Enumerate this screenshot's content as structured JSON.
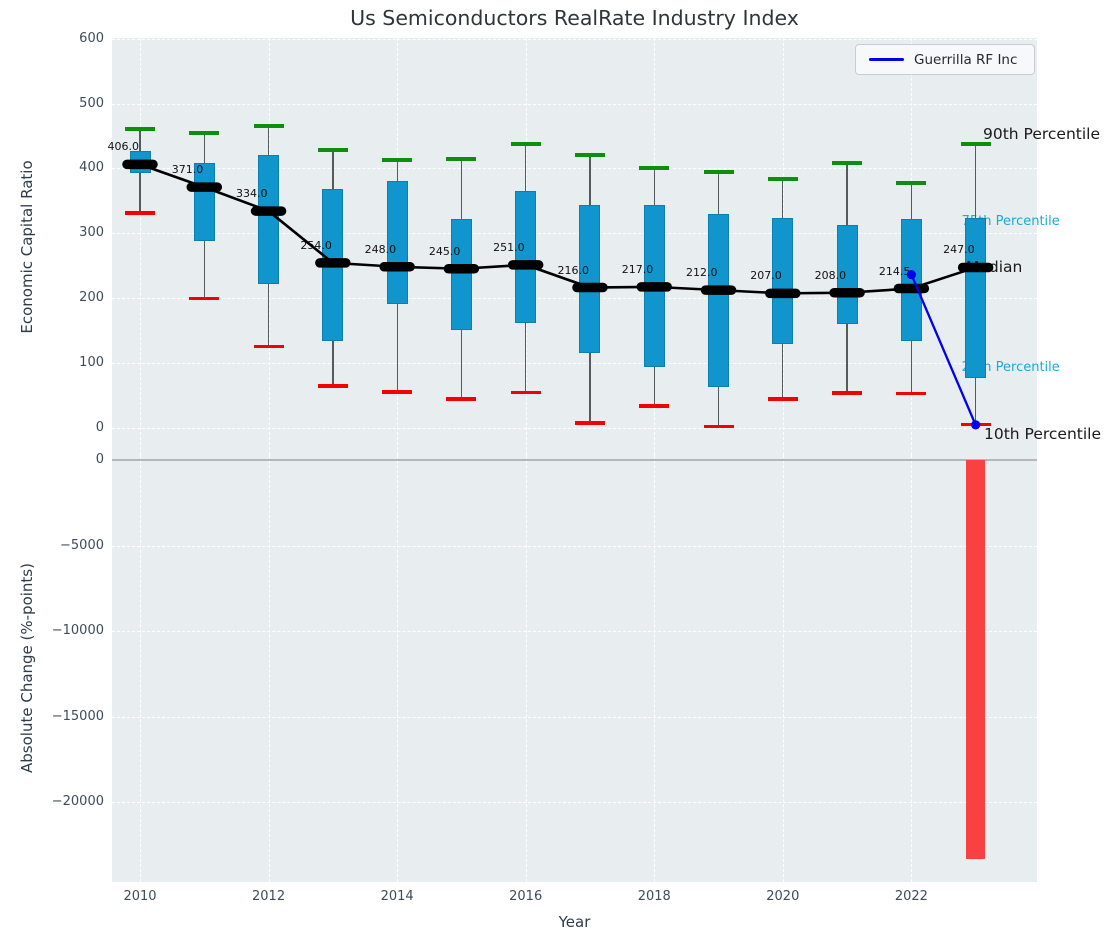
{
  "title": "Us Semiconductors RealRate Industry Index",
  "legend": {
    "label": "Guerrilla RF Inc",
    "line_color": "#0000ee"
  },
  "upper_axis": {
    "ylabel": "Economic Capital Ratio",
    "tick_values": [
      600,
      500,
      400,
      300,
      200,
      100,
      0
    ],
    "tick_labels": [
      "600",
      "500",
      "400",
      "300",
      "200",
      "100",
      "0"
    ],
    "range": [
      -45,
      600
    ]
  },
  "lower_axis": {
    "ylabel": "Absolute Change (%-points)",
    "tick_values": [
      0,
      -5000,
      -10000,
      -15000,
      -20000
    ],
    "tick_labels": [
      "0",
      "−5000",
      "−10000",
      "−15000",
      "−20000"
    ],
    "range": [
      -24700,
      300
    ]
  },
  "x_axis": {
    "label": "Year",
    "tick_values": [
      2010,
      2012,
      2014,
      2016,
      2018,
      2020,
      2022
    ],
    "tick_labels": [
      "2010",
      "2012",
      "2014",
      "2016",
      "2018",
      "2020",
      "2022"
    ]
  },
  "annotations": {
    "p90": "90th Percentile",
    "p75": "75th Percentile",
    "median": "Median",
    "p25": "25th Percentile",
    "p10": "10th Percentile"
  },
  "colors": {
    "box_fill": "#1095cd",
    "box_edge": "#0d7fae",
    "whisker": "#555a5e",
    "cap_high": "#0d8f0d",
    "cap_low": "#f40000",
    "median_marker": "#000000",
    "median_line": "#000000",
    "company_line": "#0000ee",
    "change_bar": "#fa4141",
    "cyan_annotation": "#1ea8d8",
    "axes_background": "#e8edef",
    "grid": "#ffffff"
  },
  "chart_data": [
    {
      "type": "box",
      "title": "Us Semiconductors RealRate Industry Index",
      "xlabel": "Year",
      "ylabel": "Economic Capital Ratio",
      "x": [
        2010,
        2011,
        2012,
        2013,
        2014,
        2015,
        2016,
        2017,
        2018,
        2019,
        2020,
        2021,
        2022,
        2023
      ],
      "median": [
        406,
        371,
        334,
        254,
        248,
        245,
        251,
        216,
        217,
        212,
        207,
        208,
        214.5,
        247
      ],
      "median_labels": [
        "406.0",
        "371.0",
        "334.0",
        "254.0",
        "248.0",
        "245.0",
        "251.0",
        "216.0",
        "217.0",
        "212.0",
        "207.0",
        "208.0",
        "214.5",
        "247.0"
      ],
      "q1": [
        392,
        288,
        222,
        134,
        191,
        150,
        162,
        115,
        93,
        63,
        129,
        160,
        133,
        77
      ],
      "q3": [
        426,
        408,
        420,
        368,
        380,
        321,
        365,
        343,
        343,
        330,
        324,
        313,
        322,
        324
      ],
      "p10": [
        331,
        199,
        125,
        64,
        55,
        44,
        54,
        7,
        33,
        2,
        44,
        53,
        52,
        5
      ],
      "p90": [
        461,
        455,
        465,
        429,
        413,
        415,
        437,
        420,
        400,
        395,
        383,
        408,
        377,
        437
      ],
      "grid": true,
      "legend_position": "upper right"
    },
    {
      "type": "line",
      "name": "Guerrilla RF Inc",
      "x": [
        2022,
        2023
      ],
      "y": [
        236,
        4
      ]
    },
    {
      "type": "bar",
      "ylabel": "Absolute Change (%-points)",
      "x": [
        2023
      ],
      "values": [
        -23300
      ]
    }
  ]
}
